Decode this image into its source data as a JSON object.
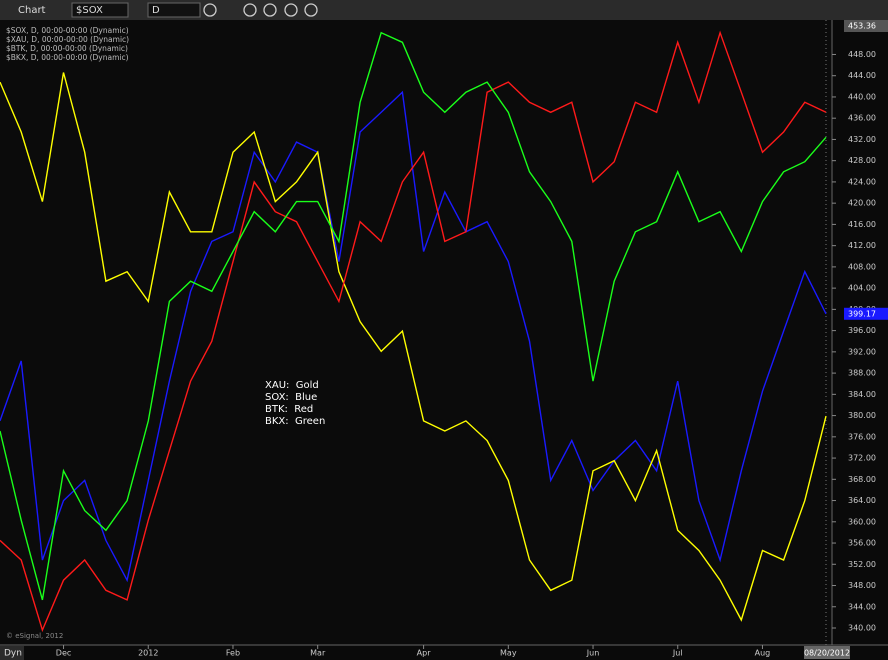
{
  "toolbar": {
    "title": "Chart",
    "symbol": "$SOX",
    "interval": "D"
  },
  "footer": {
    "mode": "Dyn",
    "copyright": "© eSignal, 2012"
  },
  "chart_data": {
    "type": "line",
    "categories": [
      null,
      null,
      null,
      "Dec",
      null,
      null,
      null,
      "2012",
      null,
      null,
      null,
      "Feb",
      null,
      null,
      null,
      "Mar",
      null,
      null,
      null,
      null,
      "Apr",
      null,
      null,
      null,
      "May",
      null,
      null,
      null,
      "Jun",
      null,
      null,
      null,
      "Jul",
      null,
      null,
      null,
      "Aug",
      null,
      null,
      "08/20/2012"
    ],
    "series": [
      {
        "name": "$SOX, D, 00:00-00:00 (Dynamic)",
        "color": "#1a1aff",
        "values": [
          379,
          390.3,
          352.8,
          364,
          367.8,
          356.5,
          349,
          367.8,
          386.5,
          403.4,
          412.8,
          414.6,
          429.6,
          424,
          431.5,
          429.6,
          409,
          433.4,
          437.1,
          440.9,
          410.9,
          422.1,
          414.6,
          416.5,
          409,
          394,
          367.8,
          375.3,
          365.9,
          371.5,
          375.3,
          369.6,
          386.5,
          364,
          352.8,
          369.6,
          384.6,
          395.9,
          407.1,
          399.17
        ]
      },
      {
        "name": "$XAU, D, 00:00-00:00 (Dynamic)",
        "color": "#ffff00",
        "values": [
          442.8,
          433.4,
          420.3,
          444.6,
          429.6,
          405.3,
          407.1,
          401.5,
          422.1,
          414.6,
          414.6,
          429.6,
          433.4,
          420.3,
          424,
          429.6,
          407.1,
          397.7,
          392.1,
          395.9,
          379,
          377.1,
          379,
          375.3,
          367.8,
          352.8,
          347.1,
          349,
          369.6,
          371.5,
          364,
          373.4,
          358.4,
          354.6,
          349,
          341.5,
          354.6,
          352.8,
          364,
          379.9
        ]
      },
      {
        "name": "$BTK, D, 00:00-00:00 (Dynamic)",
        "color": "#ff1a1a",
        "values": [
          356.5,
          352.8,
          339.6,
          349,
          352.8,
          347.1,
          345.3,
          360.3,
          373.4,
          386.5,
          394,
          409,
          424,
          418.4,
          416.5,
          409,
          401.5,
          416.5,
          412.8,
          424,
          429.6,
          412.8,
          414.6,
          440.9,
          442.8,
          439,
          437.1,
          439,
          424,
          427.8,
          439,
          437.1,
          450.3,
          439,
          452.1,
          440.9,
          429.6,
          433.4,
          439,
          437.1
        ]
      },
      {
        "name": "$BKX, D, 00:00-00:00 (Dynamic)",
        "color": "#1aff1a",
        "values": [
          377.1,
          360.3,
          345.3,
          369.6,
          362.1,
          358.4,
          364,
          379,
          401.5,
          405.3,
          403.4,
          410.9,
          418.4,
          414.6,
          420.3,
          420.3,
          412.8,
          439,
          452.1,
          450.3,
          440.9,
          437.1,
          440.9,
          442.8,
          437.1,
          425.9,
          420.3,
          412.8,
          386.5,
          405.3,
          414.6,
          416.5,
          425.9,
          416.5,
          418.4,
          410.9,
          420.3,
          425.9,
          427.8,
          432.4
        ]
      }
    ],
    "annotations": [
      "XAU:  Gold",
      "SOX:  Blue",
      "BTK:  Red",
      "BKX:  Green"
    ],
    "ylim": [
      336.8,
      453.36
    ],
    "yticks": [
      {
        "value": 340,
        "label": "340.00"
      },
      {
        "value": 344,
        "label": "344.00"
      },
      {
        "value": 348,
        "label": "348.00"
      },
      {
        "value": 352,
        "label": "352.00"
      },
      {
        "value": 356,
        "label": "356.00"
      },
      {
        "value": 360,
        "label": "360.00"
      },
      {
        "value": 364,
        "label": "364.00"
      },
      {
        "value": 368,
        "label": "368.00"
      },
      {
        "value": 372,
        "label": "372.00"
      },
      {
        "value": 376,
        "label": "376.00"
      },
      {
        "value": 380,
        "label": "380.00"
      },
      {
        "value": 384,
        "label": "384.00"
      },
      {
        "value": 388,
        "label": "388.00"
      },
      {
        "value": 392,
        "label": "392.00"
      },
      {
        "value": 396,
        "label": "396.00"
      },
      {
        "value": 400,
        "label": "400.00"
      },
      {
        "value": 404,
        "label": "404.00"
      },
      {
        "value": 408,
        "label": "408.00"
      },
      {
        "value": 412,
        "label": "412.00"
      },
      {
        "value": 416,
        "label": "416.00"
      },
      {
        "value": 420,
        "label": "420.00"
      },
      {
        "value": 424,
        "label": "424.00"
      },
      {
        "value": 428,
        "label": "428.00"
      },
      {
        "value": 432,
        "label": "432.00"
      },
      {
        "value": 436,
        "label": "436.00"
      },
      {
        "value": 440,
        "label": "440.00"
      },
      {
        "value": 444,
        "label": "444.00"
      },
      {
        "value": 448,
        "label": "448.00"
      }
    ],
    "grid": false
  }
}
